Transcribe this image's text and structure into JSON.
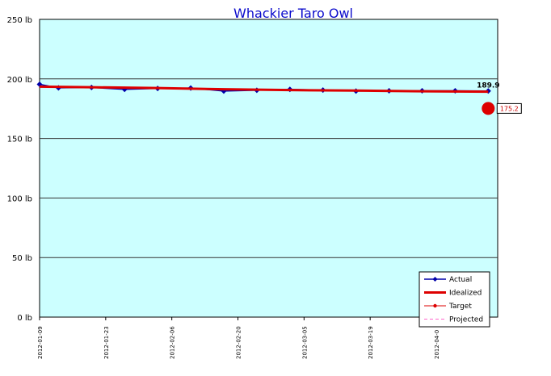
{
  "chart_data": {
    "type": "line",
    "title": "Whackier Taro Owl",
    "ylim": [
      0,
      250
    ],
    "y_ticks": [
      {
        "value": 0,
        "label": "0 lb"
      },
      {
        "value": 50,
        "label": "50 lb"
      },
      {
        "value": 100,
        "label": "100 lb"
      },
      {
        "value": 150,
        "label": "150 lb"
      },
      {
        "value": 200,
        "label": "200 lb"
      },
      {
        "value": 250,
        "label": "250 lb"
      }
    ],
    "x_range": [
      "2012-01-09",
      "2012-04-15"
    ],
    "x_ticks": [
      "2012-01-09",
      "2012-01-23",
      "2012-02-06",
      "2012-02-20",
      "2012-03-05",
      "2012-03-19",
      "2012-04-0"
    ],
    "plot_bg": "#ccffff",
    "grid": true,
    "legend_position": "bottom-right",
    "series": [
      {
        "name": "Actual",
        "color": "#0000aa",
        "style": "line-diamond",
        "points": [
          {
            "x": "2012-01-09",
            "y": 195.5
          },
          {
            "x": "2012-01-13",
            "y": 192.5
          },
          {
            "x": "2012-01-20",
            "y": 192.8
          },
          {
            "x": "2012-01-27",
            "y": 191.2
          },
          {
            "x": "2012-02-03",
            "y": 192.0
          },
          {
            "x": "2012-02-10",
            "y": 192.3
          },
          {
            "x": "2012-02-17",
            "y": 189.8
          },
          {
            "x": "2012-02-24",
            "y": 190.5
          },
          {
            "x": "2012-03-02",
            "y": 191.2
          },
          {
            "x": "2012-03-09",
            "y": 190.6
          },
          {
            "x": "2012-03-16",
            "y": 189.8
          },
          {
            "x": "2012-03-23",
            "y": 190.0
          },
          {
            "x": "2012-03-30",
            "y": 190.0
          },
          {
            "x": "2012-04-06",
            "y": 190.0
          },
          {
            "x": "2012-04-13",
            "y": 189.9
          }
        ]
      },
      {
        "name": "Idealized",
        "color": "#dd0000",
        "style": "thick-line",
        "points": [
          {
            "x": "2012-01-09",
            "y": 193.5
          },
          {
            "x": "2012-01-20",
            "y": 193.0
          },
          {
            "x": "2012-02-03",
            "y": 192.3
          },
          {
            "x": "2012-02-17",
            "y": 191.3
          },
          {
            "x": "2012-03-02",
            "y": 190.6
          },
          {
            "x": "2012-03-16",
            "y": 190.2
          },
          {
            "x": "2012-03-30",
            "y": 189.6
          },
          {
            "x": "2012-04-13",
            "y": 189.3
          }
        ]
      },
      {
        "name": "Target",
        "color": "#dd0000",
        "style": "line-dot",
        "points": [
          {
            "x": "2012-04-13",
            "y": 175.2
          }
        ]
      },
      {
        "name": "Projected",
        "color": "#ff66cc",
        "style": "dashed",
        "points": []
      }
    ],
    "annotations": [
      {
        "text": "189.9",
        "x": "2012-04-13",
        "y": 189.9,
        "style": "bold"
      },
      {
        "text": "175.2",
        "x": "2012-04-13",
        "y": 175.2,
        "style": "boxed"
      }
    ]
  }
}
